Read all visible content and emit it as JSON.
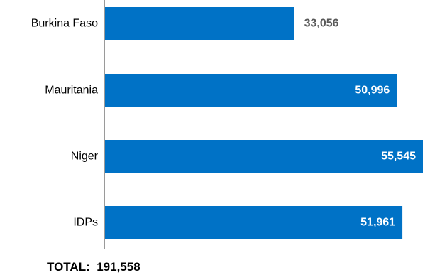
{
  "chart_data": {
    "type": "bar",
    "orientation": "horizontal",
    "categories": [
      "Burkina Faso",
      "Mauritania",
      "Niger",
      "IDPs"
    ],
    "values": [
      33056,
      50996,
      55545,
      51961
    ],
    "value_labels": [
      "33,056",
      "50,996",
      "55,545",
      "51,961"
    ],
    "title": "",
    "xlabel": "",
    "ylabel": "",
    "xlim": [
      0,
      55545
    ],
    "grid": false,
    "bar_color": "#0072C6",
    "label_color_inside": "#ffffff",
    "label_color_outside": "#595959"
  },
  "total": {
    "label": "TOTAL:",
    "value": "191,558"
  }
}
